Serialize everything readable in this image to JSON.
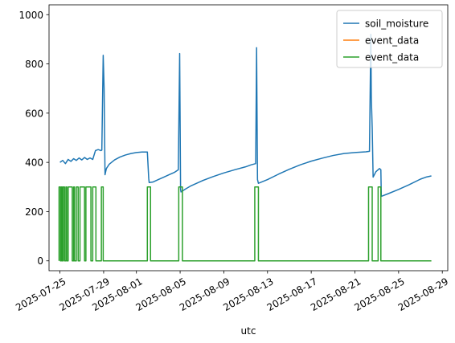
{
  "chart_data": {
    "type": "line",
    "title": "",
    "xlabel": "utc",
    "ylabel": "",
    "xlim": [
      "2025-07-24T00:00",
      "2025-08-29T12:00"
    ],
    "ylim": [
      -40,
      1040
    ],
    "yticks": [
      0,
      200,
      400,
      600,
      800,
      1000
    ],
    "xticks": [
      "2025-07-25",
      "2025-07-29",
      "2025-08-01",
      "2025-08-05",
      "2025-08-09",
      "2025-08-13",
      "2025-08-17",
      "2025-08-21",
      "2025-08-25",
      "2025-08-29"
    ],
    "legend": "top-right",
    "grid": false,
    "series": [
      {
        "name": "soil_moisture",
        "color": "#1f77b4",
        "points": [
          [
            "2025-07-25T00:00",
            400
          ],
          [
            "2025-07-25T06:00",
            408
          ],
          [
            "2025-07-25T12:00",
            395
          ],
          [
            "2025-07-25T18:00",
            412
          ],
          [
            "2025-07-26T00:00",
            404
          ],
          [
            "2025-07-26T06:00",
            415
          ],
          [
            "2025-07-26T12:00",
            408
          ],
          [
            "2025-07-26T18:00",
            418
          ],
          [
            "2025-07-27T00:00",
            410
          ],
          [
            "2025-07-27T06:00",
            420
          ],
          [
            "2025-07-27T12:00",
            412
          ],
          [
            "2025-07-27T18:00",
            418
          ],
          [
            "2025-07-28T00:00",
            412
          ],
          [
            "2025-07-28T06:00",
            448
          ],
          [
            "2025-07-28T12:00",
            452
          ],
          [
            "2025-07-28T18:00",
            448
          ],
          [
            "2025-07-28T20:00",
            450
          ],
          [
            "2025-07-28T23:00",
            835
          ],
          [
            "2025-07-29T01:00",
            700
          ],
          [
            "2025-07-29T03:00",
            350
          ],
          [
            "2025-07-29T06:00",
            375
          ],
          [
            "2025-07-29T12:00",
            392
          ],
          [
            "2025-07-30T00:00",
            410
          ],
          [
            "2025-07-30T12:00",
            422
          ],
          [
            "2025-07-31T00:00",
            430
          ],
          [
            "2025-07-31T12:00",
            436
          ],
          [
            "2025-08-01T00:00",
            440
          ],
          [
            "2025-08-01T12:00",
            442
          ],
          [
            "2025-08-02T00:00",
            442
          ],
          [
            "2025-08-02T03:00",
            335
          ],
          [
            "2025-08-02T04:00",
            318
          ],
          [
            "2025-08-02T12:00",
            320
          ],
          [
            "2025-08-03T00:00",
            330
          ],
          [
            "2025-08-03T12:00",
            340
          ],
          [
            "2025-08-04T00:00",
            350
          ],
          [
            "2025-08-04T12:00",
            360
          ],
          [
            "2025-08-04T20:00",
            370
          ],
          [
            "2025-08-04T23:00",
            842
          ],
          [
            "2025-08-05T01:00",
            290
          ],
          [
            "2025-08-05T02:00",
            280
          ],
          [
            "2025-08-05T12:00",
            292
          ],
          [
            "2025-08-06T00:00",
            305
          ],
          [
            "2025-08-07T00:00",
            325
          ],
          [
            "2025-08-08T00:00",
            342
          ],
          [
            "2025-08-09T00:00",
            357
          ],
          [
            "2025-08-10T00:00",
            370
          ],
          [
            "2025-08-11T00:00",
            382
          ],
          [
            "2025-08-11T12:00",
            390
          ],
          [
            "2025-08-11T22:00",
            395
          ],
          [
            "2025-08-12T00:00",
            866
          ],
          [
            "2025-08-12T02:00",
            330
          ],
          [
            "2025-08-12T04:00",
            315
          ],
          [
            "2025-08-13T00:00",
            330
          ],
          [
            "2025-08-14T00:00",
            352
          ],
          [
            "2025-08-15T00:00",
            372
          ],
          [
            "2025-08-16T00:00",
            390
          ],
          [
            "2025-08-17T00:00",
            405
          ],
          [
            "2025-08-18T00:00",
            417
          ],
          [
            "2025-08-19T00:00",
            428
          ],
          [
            "2025-08-20T00:00",
            436
          ],
          [
            "2025-08-21T00:00",
            440
          ],
          [
            "2025-08-22T00:00",
            443
          ],
          [
            "2025-08-22T08:00",
            445
          ],
          [
            "2025-08-22T11:00",
            920
          ],
          [
            "2025-08-22T12:00",
            665
          ],
          [
            "2025-08-22T14:00",
            540
          ],
          [
            "2025-08-22T16:00",
            340
          ],
          [
            "2025-08-22T22:00",
            362
          ],
          [
            "2025-08-23T06:00",
            375
          ],
          [
            "2025-08-23T09:00",
            370
          ],
          [
            "2025-08-23T10:00",
            262
          ],
          [
            "2025-08-24T00:00",
            272
          ],
          [
            "2025-08-25T00:00",
            290
          ],
          [
            "2025-08-26T00:00",
            310
          ],
          [
            "2025-08-27T00:00",
            332
          ],
          [
            "2025-08-27T12:00",
            340
          ],
          [
            "2025-08-28T00:00",
            345
          ]
        ]
      },
      {
        "name": "event_data",
        "color": "#ff7f0e",
        "points": []
      },
      {
        "name": "event_data",
        "color": "#2ca02c",
        "points": [
          [
            "2025-07-24T22:00",
            0
          ],
          [
            "2025-07-24T22:00",
            300
          ],
          [
            "2025-07-25T01:00",
            300
          ],
          [
            "2025-07-25T01:00",
            0
          ],
          [
            "2025-07-25T03:00",
            0
          ],
          [
            "2025-07-25T03:00",
            300
          ],
          [
            "2025-07-25T05:00",
            300
          ],
          [
            "2025-07-25T05:00",
            0
          ],
          [
            "2025-07-25T07:00",
            0
          ],
          [
            "2025-07-25T07:00",
            300
          ],
          [
            "2025-07-25T10:00",
            300
          ],
          [
            "2025-07-25T10:00",
            0
          ],
          [
            "2025-07-25T13:00",
            0
          ],
          [
            "2025-07-25T13:00",
            300
          ],
          [
            "2025-07-25T15:00",
            300
          ],
          [
            "2025-07-25T15:00",
            0
          ],
          [
            "2025-07-25T18:00",
            0
          ],
          [
            "2025-07-25T18:00",
            300
          ],
          [
            "2025-07-26T03:00",
            300
          ],
          [
            "2025-07-26T03:00",
            0
          ],
          [
            "2025-07-26T06:00",
            0
          ],
          [
            "2025-07-26T06:00",
            300
          ],
          [
            "2025-07-26T08:00",
            300
          ],
          [
            "2025-07-26T08:00",
            0
          ],
          [
            "2025-07-26T12:00",
            0
          ],
          [
            "2025-07-26T12:00",
            300
          ],
          [
            "2025-07-26T16:00",
            300
          ],
          [
            "2025-07-26T16:00",
            0
          ],
          [
            "2025-07-26T20:00",
            0
          ],
          [
            "2025-07-26T20:00",
            300
          ],
          [
            "2025-07-27T06:00",
            300
          ],
          [
            "2025-07-27T06:00",
            0
          ],
          [
            "2025-07-27T09:00",
            0
          ],
          [
            "2025-07-27T09:00",
            300
          ],
          [
            "2025-07-27T20:00",
            300
          ],
          [
            "2025-07-27T20:00",
            0
          ],
          [
            "2025-07-28T00:00",
            0
          ],
          [
            "2025-07-28T00:00",
            300
          ],
          [
            "2025-07-28T07:00",
            300
          ],
          [
            "2025-07-28T07:00",
            0
          ],
          [
            "2025-07-28T19:00",
            0
          ],
          [
            "2025-07-28T19:00",
            300
          ],
          [
            "2025-07-28T23:00",
            300
          ],
          [
            "2025-07-28T23:00",
            0
          ],
          [
            "2025-08-02T00:00",
            0
          ],
          [
            "2025-08-02T00:00",
            300
          ],
          [
            "2025-08-02T07:00",
            300
          ],
          [
            "2025-08-02T07:00",
            0
          ],
          [
            "2025-08-04T21:00",
            0
          ],
          [
            "2025-08-04T21:00",
            300
          ],
          [
            "2025-08-05T05:00",
            300
          ],
          [
            "2025-08-05T05:00",
            0
          ],
          [
            "2025-08-11T20:00",
            0
          ],
          [
            "2025-08-11T20:00",
            300
          ],
          [
            "2025-08-12T04:00",
            300
          ],
          [
            "2025-08-12T04:00",
            0
          ],
          [
            "2025-08-22T06:00",
            0
          ],
          [
            "2025-08-22T06:00",
            300
          ],
          [
            "2025-08-22T14:00",
            300
          ],
          [
            "2025-08-22T14:00",
            0
          ],
          [
            "2025-08-23T03:00",
            0
          ],
          [
            "2025-08-23T03:00",
            300
          ],
          [
            "2025-08-23T09:00",
            300
          ],
          [
            "2025-08-23T09:00",
            0
          ],
          [
            "2025-08-28T00:00",
            0
          ]
        ]
      }
    ]
  }
}
